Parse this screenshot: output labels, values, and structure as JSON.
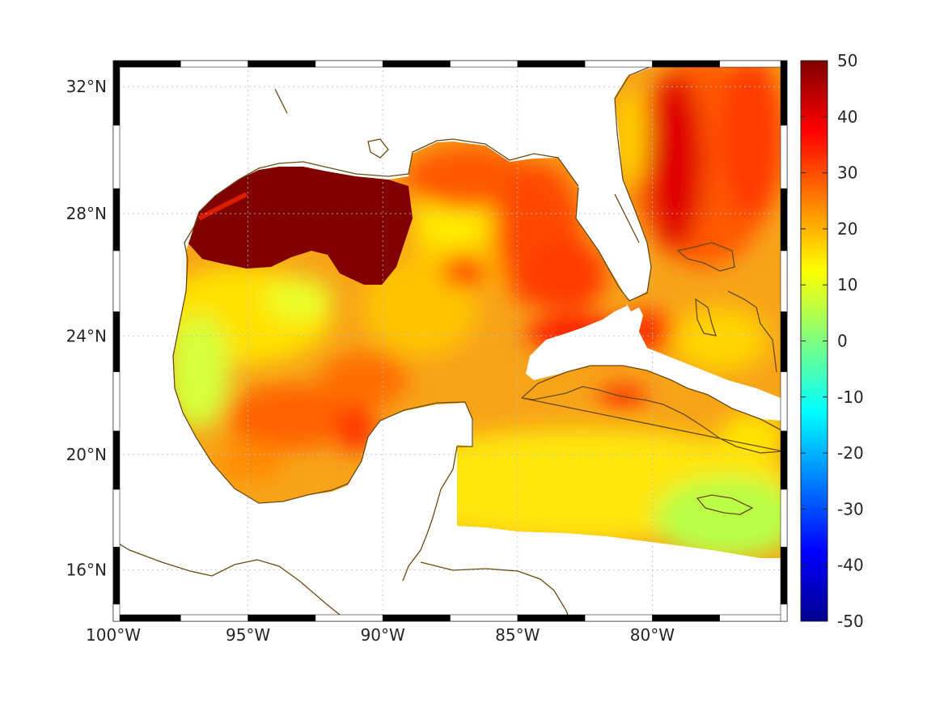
{
  "map": {
    "projection": "mercator",
    "lon_range": [
      -100,
      -75
    ],
    "lat_range": [
      14.2,
      32.8
    ],
    "lon_ticks": [
      {
        "value": -100,
        "label": "100°W"
      },
      {
        "value": -95,
        "label": "95°W"
      },
      {
        "value": -90,
        "label": "90°W"
      },
      {
        "value": -85,
        "label": "85°W"
      },
      {
        "value": -80,
        "label": "80°W"
      }
    ],
    "lat_ticks": [
      {
        "value": 16,
        "label": "16°N"
      },
      {
        "value": 20,
        "label": "20°N"
      },
      {
        "value": 24,
        "label": "24°N"
      },
      {
        "value": 28,
        "label": "28°N"
      },
      {
        "value": 32,
        "label": "32°N"
      }
    ],
    "grid": true,
    "coastline_color": "#6b4a12",
    "frame_colors": [
      "#000000",
      "#ffffff"
    ]
  },
  "colorbar": {
    "colormap": "jet",
    "range": [
      -50,
      50
    ],
    "tick_labels": [
      "50",
      "40",
      "30",
      "20",
      "10",
      "0",
      "-10",
      "-20",
      "-30",
      "-40",
      "-50"
    ],
    "placement": "right"
  },
  "field_regions": [
    {
      "region": "Louisiana–Texas shelf",
      "value": 50
    },
    {
      "region": "northeastern Gulf / Mississippi Bight",
      "value": 35
    },
    {
      "region": "eastern Gulf near Florida",
      "value": 34
    },
    {
      "region": "Atlantic east of Florida",
      "value": 40
    },
    {
      "region": "western Gulf interior",
      "value": 15
    },
    {
      "region": "Bay of Campeche",
      "value": 22
    },
    {
      "region": "northwestern Caribbean",
      "value": 15
    },
    {
      "region": "southeast Caribbean near Jamaica",
      "value": 6
    }
  ]
}
